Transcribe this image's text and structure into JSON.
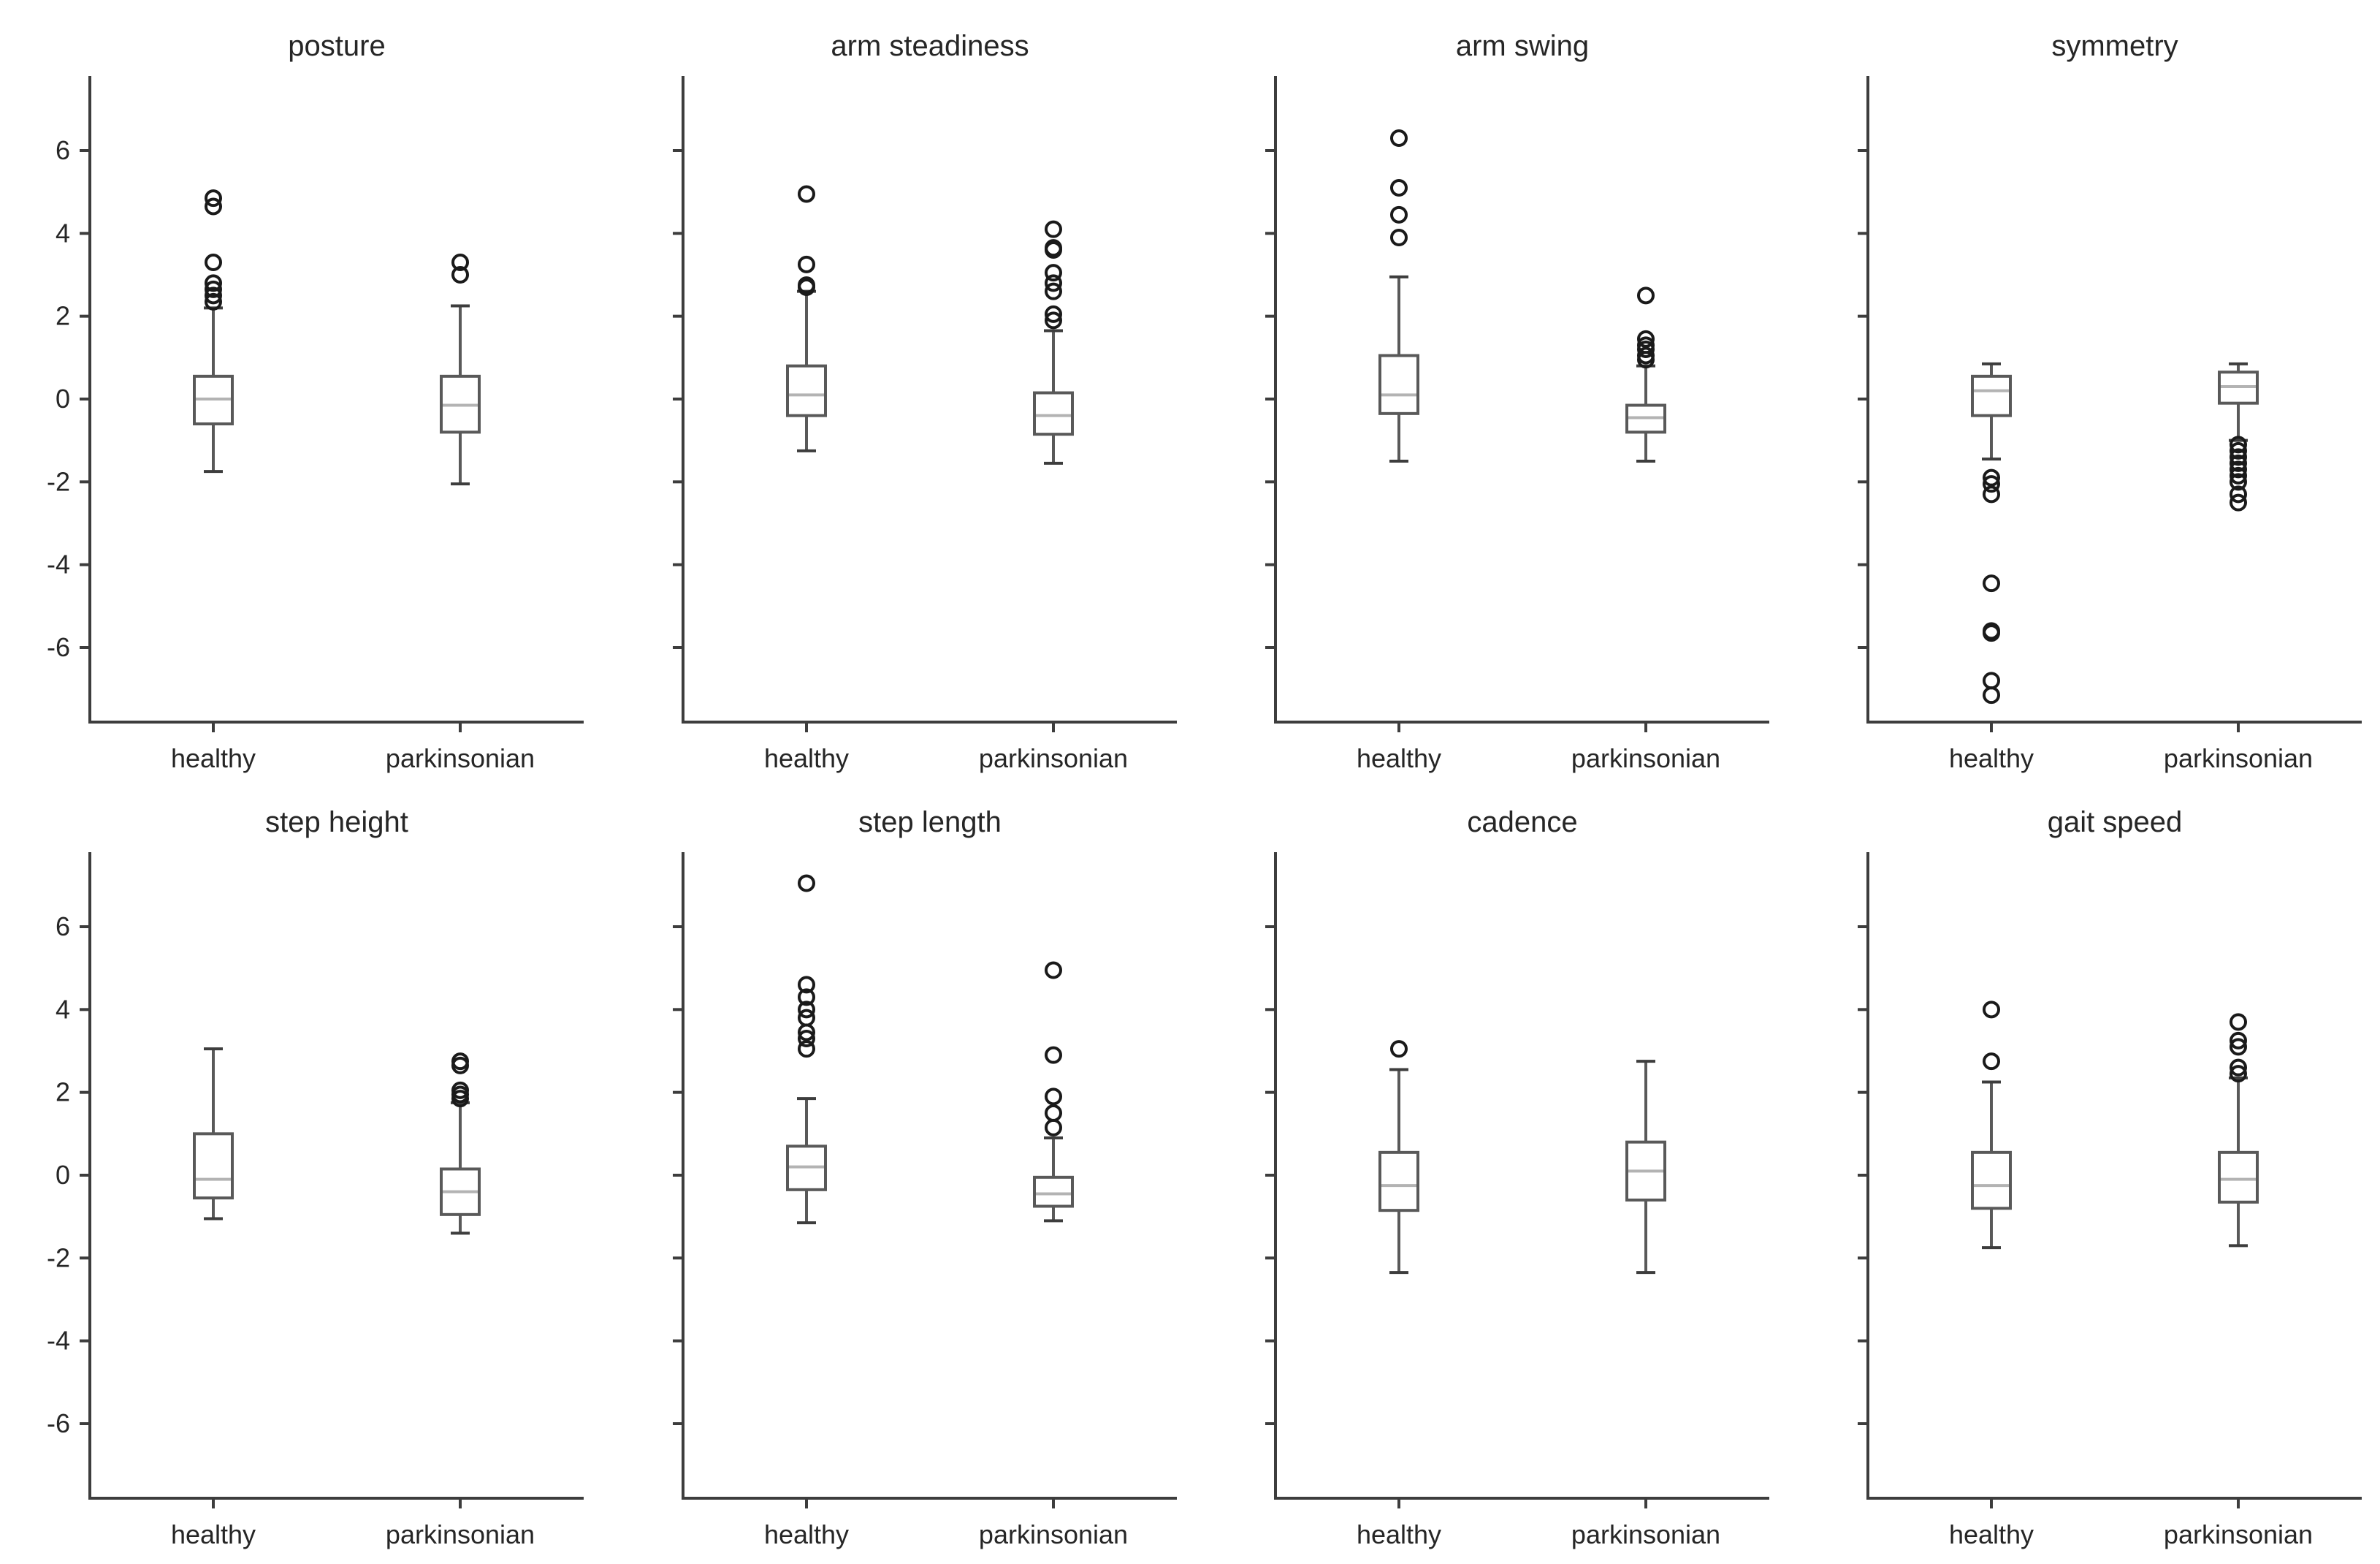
{
  "chart_data": {
    "type": "box",
    "layout": {
      "rows": 2,
      "cols": 4
    },
    "ylim": [
      -7.8,
      7.8
    ],
    "yticks": [
      -6,
      -4,
      -2,
      0,
      2,
      4,
      6
    ],
    "shared_y": true,
    "grid": false,
    "categories": [
      "healthy",
      "parkinsonian"
    ],
    "panels": [
      {
        "title": "posture",
        "boxes": [
          {
            "category": "healthy",
            "whislo": -1.75,
            "q1": -0.6,
            "med": 0.0,
            "q3": 0.55,
            "whishi": 2.2,
            "fliers": [
              2.35,
              2.5,
              2.65,
              2.8,
              3.3,
              4.65,
              4.85
            ]
          },
          {
            "category": "parkinsonian",
            "whislo": -2.05,
            "q1": -0.8,
            "med": -0.15,
            "q3": 0.55,
            "whishi": 2.25,
            "fliers": [
              3.0,
              3.3
            ]
          }
        ]
      },
      {
        "title": "arm steadiness",
        "boxes": [
          {
            "category": "healthy",
            "whislo": -1.25,
            "q1": -0.4,
            "med": 0.1,
            "q3": 0.8,
            "whishi": 2.6,
            "fliers": [
              2.7,
              2.75,
              3.25,
              4.95
            ]
          },
          {
            "category": "parkinsonian",
            "whislo": -1.55,
            "q1": -0.85,
            "med": -0.4,
            "q3": 0.15,
            "whishi": 1.65,
            "fliers": [
              1.9,
              2.05,
              2.6,
              2.8,
              3.05,
              3.6,
              3.65,
              4.1
            ]
          }
        ]
      },
      {
        "title": "arm swing",
        "boxes": [
          {
            "category": "healthy",
            "whislo": -1.5,
            "q1": -0.35,
            "med": 0.1,
            "q3": 1.05,
            "whishi": 2.95,
            "fliers": [
              3.9,
              4.45,
              5.1,
              6.3
            ]
          },
          {
            "category": "parkinsonian",
            "whislo": -1.5,
            "q1": -0.8,
            "med": -0.45,
            "q3": -0.15,
            "whishi": 0.8,
            "fliers": [
              0.95,
              1.05,
              1.2,
              1.3,
              1.45,
              2.5
            ]
          }
        ]
      },
      {
        "title": "symmetry",
        "boxes": [
          {
            "category": "healthy",
            "whislo": -1.45,
            "q1": -0.4,
            "med": 0.2,
            "q3": 0.55,
            "whishi": 0.85,
            "fliers": [
              -1.9,
              -2.05,
              -2.3,
              -4.45,
              -5.6,
              -5.65,
              -6.8,
              -7.15
            ]
          },
          {
            "category": "parkinsonian",
            "whislo": -1.0,
            "q1": -0.1,
            "med": 0.3,
            "q3": 0.65,
            "whishi": 0.85,
            "fliers": [
              -1.1,
              -1.25,
              -1.4,
              -1.55,
              -1.7,
              -1.85,
              -2.0,
              -2.3,
              -2.5
            ]
          }
        ]
      },
      {
        "title": "step height",
        "boxes": [
          {
            "category": "healthy",
            "whislo": -1.05,
            "q1": -0.55,
            "med": -0.1,
            "q3": 1.0,
            "whishi": 3.05,
            "fliers": []
          },
          {
            "category": "parkinsonian",
            "whislo": -1.4,
            "q1": -0.95,
            "med": -0.4,
            "q3": 0.15,
            "whishi": 1.75,
            "fliers": [
              1.85,
              1.95,
              2.05,
              2.65,
              2.75
            ]
          }
        ]
      },
      {
        "title": "step length",
        "boxes": [
          {
            "category": "healthy",
            "whislo": -1.15,
            "q1": -0.35,
            "med": 0.2,
            "q3": 0.7,
            "whishi": 1.85,
            "fliers": [
              3.05,
              3.3,
              3.45,
              3.8,
              4.0,
              4.3,
              4.6,
              7.05
            ]
          },
          {
            "category": "parkinsonian",
            "whislo": -1.1,
            "q1": -0.75,
            "med": -0.45,
            "q3": -0.05,
            "whishi": 0.9,
            "fliers": [
              1.15,
              1.5,
              1.9,
              2.9,
              4.95
            ]
          }
        ]
      },
      {
        "title": "cadence",
        "boxes": [
          {
            "category": "healthy",
            "whislo": -2.35,
            "q1": -0.85,
            "med": -0.25,
            "q3": 0.55,
            "whishi": 2.55,
            "fliers": [
              3.05
            ]
          },
          {
            "category": "parkinsonian",
            "whislo": -2.35,
            "q1": -0.6,
            "med": 0.1,
            "q3": 0.8,
            "whishi": 2.75,
            "fliers": []
          }
        ]
      },
      {
        "title": "gait speed",
        "boxes": [
          {
            "category": "healthy",
            "whislo": -1.75,
            "q1": -0.8,
            "med": -0.25,
            "q3": 0.55,
            "whishi": 2.25,
            "fliers": [
              2.75,
              4.0
            ]
          },
          {
            "category": "parkinsonian",
            "whislo": -1.7,
            "q1": -0.65,
            "med": -0.1,
            "q3": 0.55,
            "whishi": 2.35,
            "fliers": [
              2.45,
              2.6,
              3.1,
              3.25,
              3.7
            ]
          }
        ]
      }
    ]
  }
}
